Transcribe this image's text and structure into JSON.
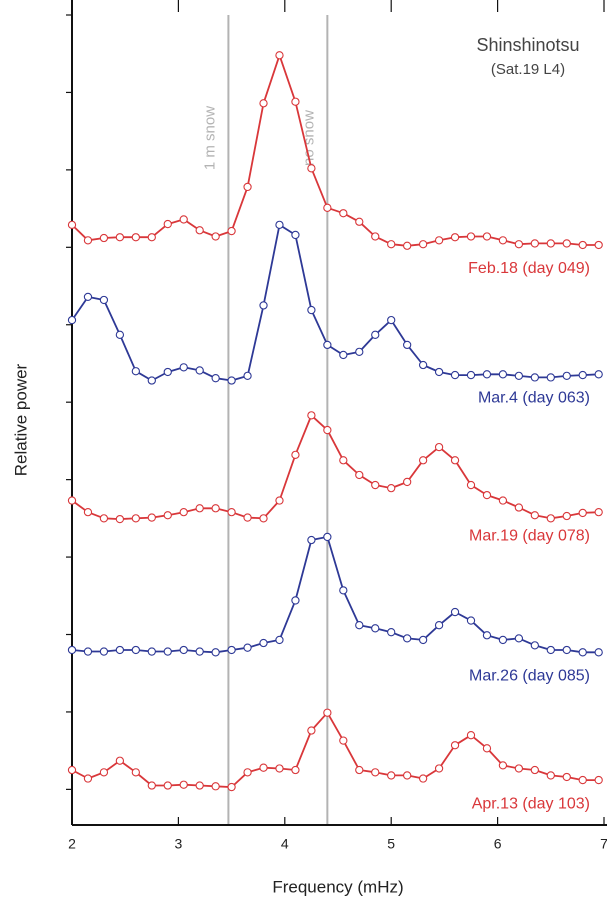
{
  "chart_data": {
    "type": "line",
    "x_label": "Frequency (mHz)",
    "y_label": "Relative power",
    "station": "Shinshinotsu",
    "station_note": "(Sat.19 L4)",
    "xlim": [
      2,
      7
    ],
    "xticks": [
      2,
      3,
      4,
      5,
      6,
      7
    ],
    "ylim": [
      -0.46,
      10
    ],
    "yticks": [
      0,
      1,
      2,
      3,
      4,
      5,
      6,
      7,
      8,
      9,
      10
    ],
    "vlines": [
      {
        "x": 3.47,
        "label": "1 m snow",
        "color": "#b3b3b3"
      },
      {
        "x": 4.4,
        "label": "no snow",
        "color": "#b3b3b3"
      }
    ],
    "x": [
      2,
      2.15,
      2.3,
      2.45,
      2.6,
      2.75,
      2.9,
      3.05,
      3.2,
      3.35,
      3.5,
      3.65,
      3.8,
      3.95,
      4.1,
      4.25,
      4.4,
      4.55,
      4.7,
      4.85,
      5,
      5.15,
      5.3,
      5.45,
      5.6,
      5.75,
      5.9,
      6.05,
      6.2,
      6.35,
      6.5,
      6.65,
      6.8,
      6.95
    ],
    "series": [
      {
        "name": "Feb.18 (day 049)",
        "color": "#d9373a",
        "values": [
          7.29,
          7.09,
          7.12,
          7.13,
          7.13,
          7.13,
          7.3,
          7.36,
          7.22,
          7.14,
          7.21,
          7.78,
          8.86,
          9.48,
          8.88,
          8.02,
          7.51,
          7.44,
          7.33,
          7.14,
          7.04,
          7.02,
          7.04,
          7.09,
          7.13,
          7.14,
          7.14,
          7.09,
          7.04,
          7.05,
          7.05,
          7.05,
          7.03,
          7.03
        ]
      },
      {
        "name": "Mar.4 (day 063)",
        "color": "#2e3996",
        "values": [
          6.06,
          6.36,
          6.32,
          5.87,
          5.4,
          5.28,
          5.39,
          5.45,
          5.41,
          5.31,
          5.28,
          5.34,
          6.25,
          7.29,
          7.16,
          6.19,
          5.74,
          5.61,
          5.65,
          5.87,
          6.06,
          5.74,
          5.48,
          5.39,
          5.35,
          5.35,
          5.36,
          5.36,
          5.34,
          5.32,
          5.32,
          5.34,
          5.35,
          5.36
        ]
      },
      {
        "name": "Mar.19 (day 078)",
        "color": "#d9373a",
        "values": [
          3.73,
          3.58,
          3.5,
          3.49,
          3.5,
          3.51,
          3.54,
          3.58,
          3.63,
          3.63,
          3.58,
          3.51,
          3.5,
          3.73,
          4.32,
          4.83,
          4.64,
          4.25,
          4.06,
          3.93,
          3.89,
          3.97,
          4.25,
          4.42,
          4.25,
          3.93,
          3.8,
          3.73,
          3.64,
          3.54,
          3.5,
          3.53,
          3.57,
          3.58
        ]
      },
      {
        "name": "Mar.26 (day 085)",
        "color": "#2e3996",
        "values": [
          1.8,
          1.78,
          1.78,
          1.8,
          1.8,
          1.78,
          1.78,
          1.8,
          1.78,
          1.77,
          1.8,
          1.83,
          1.89,
          1.93,
          2.44,
          3.22,
          3.26,
          2.57,
          2.12,
          2.08,
          2.03,
          1.95,
          1.93,
          2.12,
          2.29,
          2.18,
          1.99,
          1.93,
          1.95,
          1.86,
          1.8,
          1.8,
          1.77,
          1.77
        ]
      },
      {
        "name": "Apr.13 (day 103)",
        "color": "#d9373a",
        "values": [
          0.25,
          0.14,
          0.22,
          0.37,
          0.22,
          0.05,
          0.05,
          0.06,
          0.05,
          0.04,
          0.03,
          0.22,
          0.28,
          0.27,
          0.25,
          0.76,
          0.99,
          0.63,
          0.25,
          0.22,
          0.18,
          0.18,
          0.14,
          0.27,
          0.57,
          0.7,
          0.53,
          0.31,
          0.27,
          0.25,
          0.18,
          0.16,
          0.12,
          0.12
        ]
      }
    ]
  }
}
